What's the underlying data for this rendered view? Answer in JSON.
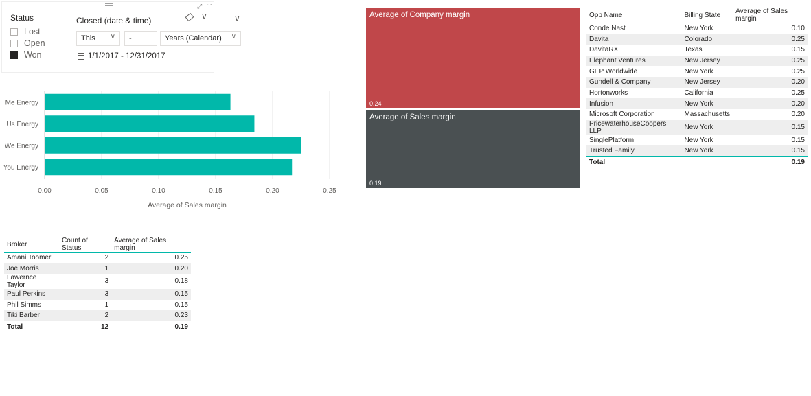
{
  "slicer": {
    "status_title": "Status",
    "status_items": [
      {
        "label": "Lost",
        "checked": false
      },
      {
        "label": "Open",
        "checked": false
      },
      {
        "label": "Won",
        "checked": true
      }
    ],
    "date_title": "Closed (date & time)",
    "period_select": "This",
    "period_number": "-",
    "period_unit": "Years (Calendar)",
    "date_range": "1/1/2017 - 12/31/2017"
  },
  "chart_data": {
    "type": "bar",
    "orientation": "horizontal",
    "categories": [
      "Me Energy",
      "Us Energy",
      "We Energy",
      "You Energy"
    ],
    "values": [
      0.163,
      0.184,
      0.225,
      0.217
    ],
    "xlabel": "Average of Sales margin",
    "ylabel": "",
    "xlim": [
      0,
      0.25
    ],
    "xticks": [
      "0.00",
      "0.05",
      "0.10",
      "0.15",
      "0.20",
      "0.25"
    ],
    "grid": true,
    "color": "#01b8aa"
  },
  "broker_table": {
    "headers": [
      "Broker",
      "Count of Status",
      "Average of Sales margin"
    ],
    "rows": [
      [
        "Amani Toomer",
        "2",
        "0.25"
      ],
      [
        "Joe Morris",
        "1",
        "0.20"
      ],
      [
        "Lawernce Taylor",
        "3",
        "0.18"
      ],
      [
        "Paul Perkins",
        "3",
        "0.15"
      ],
      [
        "Phil Simms",
        "1",
        "0.15"
      ],
      [
        "Tiki Barber",
        "2",
        "0.23"
      ]
    ],
    "total": [
      "Total",
      "12",
      "0.19"
    ]
  },
  "treemap": {
    "cells": [
      {
        "label": "Average of Company margin",
        "value": "0.24",
        "color": "#c0474a"
      },
      {
        "label": "Average of Sales margin",
        "value": "0.19",
        "color": "#4a5052"
      }
    ]
  },
  "opp_table": {
    "headers": [
      "Opp Name",
      "Billing State",
      "Average of Sales margin"
    ],
    "rows": [
      [
        "Conde Nast",
        "New York",
        "0.10"
      ],
      [
        "Davita",
        "Colorado",
        "0.25"
      ],
      [
        "DavitaRX",
        "Texas",
        "0.15"
      ],
      [
        "Elephant Ventures",
        "New Jersey",
        "0.25"
      ],
      [
        "GEP Worldwide",
        "New York",
        "0.25"
      ],
      [
        "Gundell & Company",
        "New Jersey",
        "0.20"
      ],
      [
        "Hortonworks",
        "California",
        "0.25"
      ],
      [
        "Infusion",
        "New York",
        "0.20"
      ],
      [
        "Microsoft Corporation",
        "Massachusetts",
        "0.20"
      ],
      [
        "PricewaterhouseCoopers LLP",
        "New York",
        "0.15"
      ],
      [
        "SinglePlatform",
        "New York",
        "0.15"
      ],
      [
        "Trusted Family",
        "New York",
        "0.15"
      ]
    ],
    "total": [
      "Total",
      "",
      "0.19"
    ]
  }
}
